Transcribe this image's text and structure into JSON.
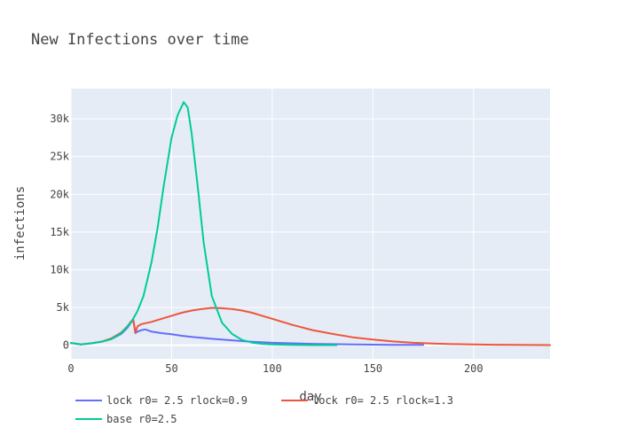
{
  "chart_data": {
    "type": "line",
    "title": "New Infections over time",
    "xlabel": "day",
    "ylabel": "infections",
    "xlim": [
      0,
      238
    ],
    "ylim": [
      -1800,
      34000
    ],
    "xticks": [
      0,
      50,
      100,
      150,
      200
    ],
    "xtick_labels": [
      "0",
      "50",
      "100",
      "150",
      "200"
    ],
    "yticks": [
      0,
      5000,
      10000,
      15000,
      20000,
      25000,
      30000
    ],
    "ytick_labels": [
      "0",
      "5k",
      "10k",
      "15k",
      "20k",
      "25k",
      "30k"
    ],
    "grid": true,
    "legend_position": "bottom-left",
    "background_color": "#e5ecf6",
    "series": [
      {
        "name": "lock r0= 2.5 rlock=0.9",
        "color": "#636efa",
        "x": [
          0,
          5,
          10,
          15,
          20,
          25,
          28,
          30,
          31,
          32,
          33,
          35,
          37,
          40,
          45,
          50,
          55,
          60,
          70,
          80,
          90,
          100,
          120,
          140,
          160,
          175
        ],
        "y": [
          300,
          100,
          250,
          450,
          800,
          1500,
          2300,
          3100,
          3300,
          1600,
          1800,
          2000,
          2100,
          1800,
          1600,
          1450,
          1250,
          1100,
          850,
          650,
          450,
          320,
          180,
          100,
          60,
          40
        ]
      },
      {
        "name": "lock r0= 2.5 rlock=1.3",
        "color": "#ef553b",
        "x": [
          0,
          5,
          10,
          15,
          20,
          25,
          28,
          30,
          31,
          32,
          33,
          35,
          40,
          45,
          50,
          55,
          60,
          65,
          70,
          75,
          80,
          85,
          90,
          95,
          100,
          110,
          120,
          130,
          140,
          150,
          160,
          170,
          180,
          190,
          200,
          210,
          220,
          230,
          238
        ],
        "y": [
          300,
          100,
          250,
          450,
          900,
          1700,
          2500,
          3200,
          3400,
          1700,
          2500,
          2800,
          3100,
          3500,
          3900,
          4300,
          4600,
          4800,
          4950,
          4900,
          4800,
          4600,
          4300,
          3900,
          3500,
          2700,
          2000,
          1500,
          1050,
          750,
          500,
          330,
          220,
          150,
          100,
          70,
          50,
          35,
          25
        ]
      },
      {
        "name": "base r0=2.5",
        "color": "#00cc96",
        "x": [
          0,
          5,
          10,
          15,
          20,
          25,
          28,
          30,
          33,
          36,
          40,
          43,
          46,
          50,
          53,
          56,
          58,
          60,
          63,
          66,
          70,
          75,
          80,
          85,
          90,
          95,
          100,
          110,
          120,
          132
        ],
        "y": [
          300,
          100,
          250,
          450,
          800,
          1600,
          2500,
          3100,
          4500,
          6500,
          11000,
          15500,
          21000,
          27500,
          30500,
          32200,
          31500,
          28000,
          21000,
          13500,
          6500,
          3000,
          1500,
          700,
          350,
          180,
          100,
          50,
          25,
          15
        ]
      }
    ]
  }
}
